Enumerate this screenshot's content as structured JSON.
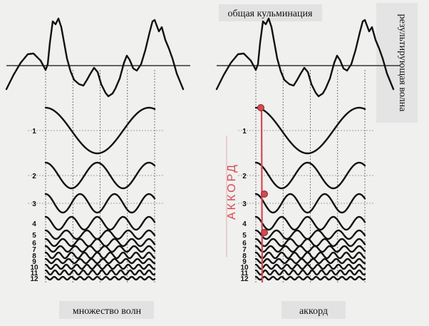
{
  "captions": {
    "left": "множество волн",
    "right": "аккорд",
    "top": "общая кульминация",
    "side": "результирующая волна",
    "chord": "АККОРД"
  },
  "harmonics": [
    "1",
    "2",
    "3",
    "4",
    "5",
    "6",
    "7",
    "8",
    "9",
    "10",
    "11",
    "12"
  ],
  "colors": {
    "background": "#f0f0ef",
    "wave": "#111111",
    "chord": "#d44a50",
    "grid": "#555555"
  }
}
